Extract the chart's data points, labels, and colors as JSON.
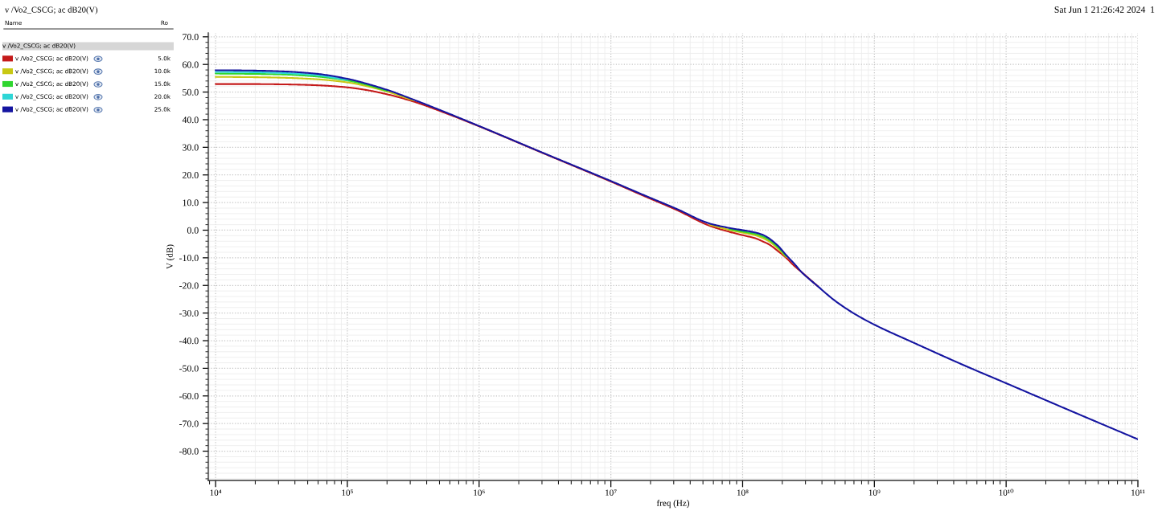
{
  "chart_data": {
    "type": "line",
    "title": "v /Vo2_CSCG; ac dB20(V)",
    "xlabel": "freq (Hz)",
    "ylabel": "V (dB)",
    "legend_title": "v /Vo2_CSCG; ac dB20(V)",
    "annotations": [
      "Sat Jun 1 21:26:42 2024  1",
      "Name",
      "Ro",
      "5.0k",
      "10.0k",
      "15.0k",
      "20.0k",
      "25.0k"
    ],
    "x": [
      10000,
      17800,
      31600,
      56200,
      100000,
      141000,
      200000,
      316000,
      562000,
      1000000,
      3160000,
      10000000,
      17800000,
      31600000,
      56200000,
      79400000,
      100000000,
      126000000,
      141000000,
      158000000,
      186000000,
      214000000,
      245000000,
      282000000,
      372000000,
      501000000,
      708000000,
      1000000000,
      2000000000,
      5000000000,
      10000000000,
      31600000000,
      100000000000
    ],
    "series": [
      {
        "name": "v /Vo2_CSCG; ac dB20(V)",
        "color": "#c41a1a",
        "values": [
          52.9,
          52.9,
          52.8,
          52.5,
          51.7,
          50.7,
          49.2,
          46.6,
          42.3,
          37.6,
          27.6,
          17.6,
          12.4,
          7.3,
          1.6,
          -0.6,
          -1.8,
          -3.0,
          -4.0,
          -5.1,
          -7.6,
          -10.0,
          -12.8,
          -15.3,
          -20.3,
          null,
          null,
          null,
          null,
          null,
          null,
          null,
          null
        ]
      },
      {
        "name": "v /Vo2_CSCG; ac dB20(V)",
        "color": "#c8c814",
        "values": [
          55.5,
          55.4,
          55.2,
          54.7,
          53.5,
          52.1,
          50.2,
          47.0,
          null,
          null,
          null,
          null,
          null,
          null,
          2.0,
          0.1,
          -0.9,
          -1.9,
          -2.8,
          -4.0,
          -6.7,
          -9.7,
          null,
          null,
          null,
          null,
          null,
          null,
          null,
          null,
          null,
          null,
          null
        ]
      },
      {
        "name": "v /Vo2_CSCG; ac dB20(V)",
        "color": "#2fd62f",
        "values": [
          56.7,
          56.6,
          56.4,
          55.7,
          54.2,
          52.6,
          50.4,
          null,
          null,
          null,
          null,
          null,
          null,
          null,
          null,
          0.4,
          -0.5,
          -1.4,
          -2.2,
          -3.4,
          -6.2,
          -9.4,
          null,
          null,
          null,
          null,
          null,
          null,
          null,
          null,
          null,
          null,
          null
        ]
      },
      {
        "name": "v /Vo2_CSCG; ac dB20(V)",
        "color": "#2ed6d6",
        "values": [
          57.3,
          57.2,
          56.9,
          56.2,
          54.4,
          null,
          null,
          null,
          null,
          null,
          null,
          null,
          null,
          null,
          null,
          null,
          null,
          null,
          null,
          null,
          null,
          null,
          null,
          null,
          null,
          null,
          null,
          null,
          null,
          null,
          null,
          null,
          null
        ]
      },
      {
        "name": "v /Vo2_CSCG; ac dB20(V)",
        "color": "#1414a0",
        "values": [
          57.9,
          57.8,
          57.5,
          56.7,
          54.8,
          53.0,
          50.8,
          47.3,
          42.6,
          37.7,
          27.7,
          17.8,
          12.7,
          7.7,
          2.4,
          0.8,
          0.0,
          -0.9,
          -1.6,
          -2.9,
          -5.7,
          -9.0,
          -12.0,
          -15.3,
          -20.3,
          -25.5,
          -30.3,
          -34.2,
          -40.8,
          -49.3,
          -55.4,
          -65.6,
          -75.7
        ]
      }
    ],
    "log": "x",
    "xlim": [
      8800,
      100000000000
    ],
    "ylim": [
      -90.6,
      71.4
    ],
    "xticks": [
      {
        "value": 10000,
        "label": "10⁴"
      },
      {
        "value": 100000,
        "label": "10⁵"
      },
      {
        "value": 1000000,
        "label": "10⁶"
      },
      {
        "value": 10000000,
        "label": "10⁷"
      },
      {
        "value": 100000000,
        "label": "10⁸"
      },
      {
        "value": 1000000000,
        "label": "10⁹"
      },
      {
        "value": 10000000000,
        "label": "10¹⁰"
      },
      {
        "value": 100000000000,
        "label": "10¹¹"
      }
    ],
    "yticks": [
      {
        "value": 70,
        "label": "70.0"
      },
      {
        "value": 60,
        "label": "60.0"
      },
      {
        "value": 50,
        "label": "50.0"
      },
      {
        "value": 40,
        "label": "40.0"
      },
      {
        "value": 30,
        "label": "30.0"
      },
      {
        "value": 20,
        "label": "20.0"
      },
      {
        "value": 10,
        "label": "10.0"
      },
      {
        "value": 0,
        "label": "0.0"
      },
      {
        "value": -10,
        "label": "-10.0"
      },
      {
        "value": -20,
        "label": "-20.0"
      },
      {
        "value": -30,
        "label": "-30.0"
      },
      {
        "value": -40,
        "label": "-40.0"
      },
      {
        "value": -50,
        "label": "-50.0"
      },
      {
        "value": -60,
        "label": "-60.0"
      },
      {
        "value": -70,
        "label": "-70.0"
      },
      {
        "value": -80,
        "label": "-80.0"
      }
    ],
    "grid": true,
    "legend": "top left",
    "line_style": "solid"
  }
}
